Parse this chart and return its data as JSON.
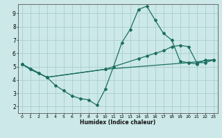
{
  "title": "",
  "xlabel": "Humidex (Indice chaleur)",
  "bg_color": "#cce8e8",
  "grid_color": "#aacece",
  "line_color": "#1a6e60",
  "xlim": [
    -0.5,
    23.5
  ],
  "ylim": [
    1.5,
    9.7
  ],
  "yticks": [
    2,
    3,
    4,
    5,
    6,
    7,
    8,
    9
  ],
  "xticks": [
    0,
    1,
    2,
    3,
    4,
    5,
    6,
    7,
    8,
    9,
    10,
    11,
    12,
    13,
    14,
    15,
    16,
    17,
    18,
    19,
    20,
    21,
    22,
    23
  ],
  "line1_x": [
    0,
    1,
    2,
    3,
    4,
    5,
    6,
    7,
    8,
    9,
    10,
    11,
    12,
    13,
    14,
    15,
    16,
    17,
    18,
    19,
    20,
    21,
    22,
    23
  ],
  "line1_y": [
    5.2,
    4.8,
    4.5,
    4.2,
    3.6,
    3.2,
    2.8,
    2.6,
    2.5,
    2.1,
    3.3,
    5.0,
    6.8,
    7.8,
    9.3,
    9.55,
    8.5,
    7.5,
    7.0,
    5.4,
    5.3,
    5.2,
    5.5,
    5.5
  ],
  "line2_x": [
    0,
    1,
    2,
    3,
    10,
    14,
    15,
    16,
    17,
    18,
    19,
    20,
    21,
    22,
    23
  ],
  "line2_y": [
    5.2,
    4.8,
    4.5,
    4.2,
    4.8,
    5.6,
    5.8,
    6.0,
    6.2,
    6.5,
    6.6,
    6.5,
    5.3,
    5.3,
    5.5
  ],
  "line3_x": [
    0,
    3,
    10,
    20,
    23
  ],
  "line3_y": [
    5.2,
    4.2,
    4.8,
    5.3,
    5.5
  ]
}
